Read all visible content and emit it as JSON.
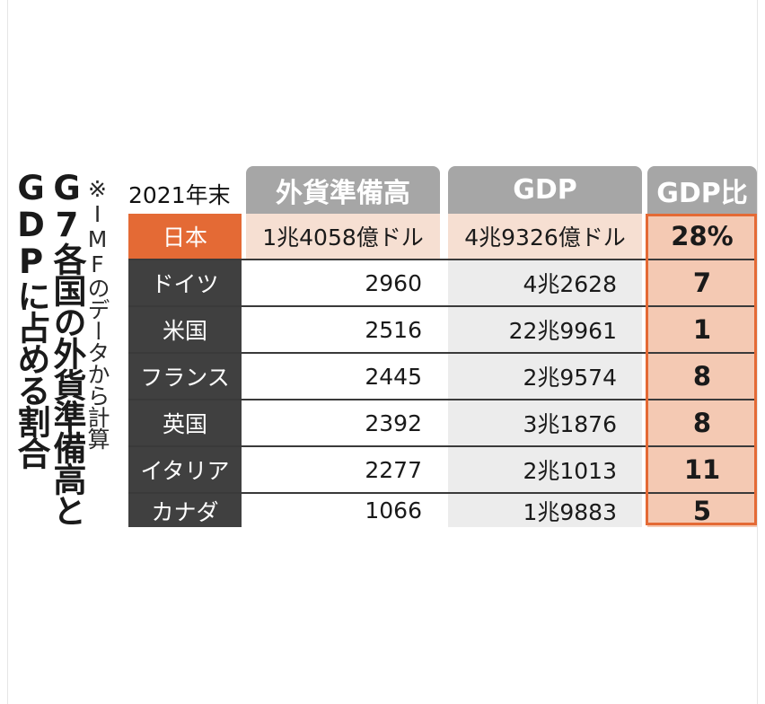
{
  "title": {
    "line1": "GDPに占める割合",
    "line2": "G7各国の外貨準備高と"
  },
  "note": "※IMFのデータから計算",
  "table": {
    "year_label": "2021年末",
    "headers": {
      "reserves": "外貨準備高",
      "gdp": "GDP",
      "ratio": "GDP比"
    },
    "rows": [
      {
        "country": "日本",
        "reserves": "1兆4058億ドル",
        "gdp": "4兆9326億ドル",
        "ratio": "28%"
      },
      {
        "country": "ドイツ",
        "reserves": "2960",
        "gdp": "4兆2628",
        "ratio": "7"
      },
      {
        "country": "米国",
        "reserves": "2516",
        "gdp": "22兆9961",
        "ratio": "1"
      },
      {
        "country": "フランス",
        "reserves": "2445",
        "gdp": "2兆9574",
        "ratio": "8"
      },
      {
        "country": "英国",
        "reserves": "2392",
        "gdp": "3兆1876",
        "ratio": "8"
      },
      {
        "country": "イタリア",
        "reserves": "2277",
        "gdp": "2兆1013",
        "ratio": "11"
      },
      {
        "country": "カナダ",
        "reserves": "1066",
        "gdp": "1兆9883",
        "ratio": "5"
      }
    ]
  },
  "colors": {
    "highlight_orange": "#e46a35",
    "header_gray": "#a6a6a6",
    "country_dark": "#404040",
    "ratio_fill": "#f4c9b3",
    "japan_fill": "#f6dfd2"
  }
}
